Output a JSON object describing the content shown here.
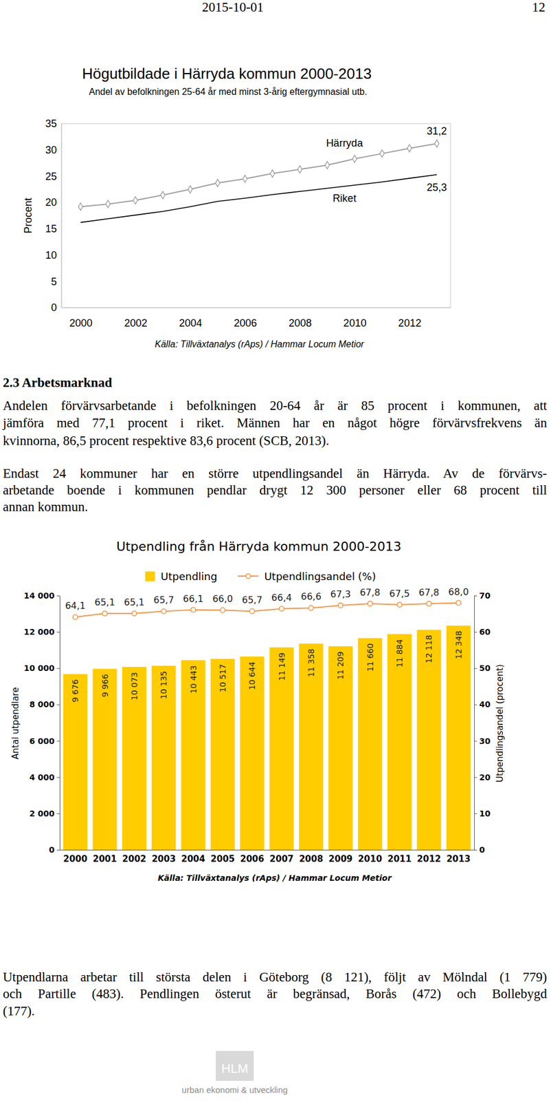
{
  "page": {
    "date": "2015-10-01",
    "page_number": "12"
  },
  "chart_data": [
    {
      "type": "line",
      "title": "Högutbildade i Härryda kommun 2000-2013",
      "subtitle": "Andel av befolkningen 25-64 år med minst 3-årig eftergymnasial utb.",
      "y_label": "Procent",
      "source": "Källa: Tillväxtanalys (rAps) / Hammar Locum Metior",
      "x": [
        2000,
        2001,
        2002,
        2003,
        2004,
        2005,
        2006,
        2007,
        2008,
        2009,
        2010,
        2011,
        2012,
        2013
      ],
      "series": [
        {
          "name": "Härryda",
          "color": "#a0a0a0",
          "marker": "diamond",
          "values": [
            19.2,
            19.7,
            20.4,
            21.4,
            22.5,
            23.7,
            24.5,
            25.5,
            26.3,
            27.1,
            28.3,
            29.3,
            30.3,
            31.2
          ],
          "value_labels": [
            null,
            null,
            null,
            null,
            null,
            null,
            null,
            null,
            null,
            null,
            null,
            null,
            null,
            "31,2"
          ]
        },
        {
          "name": "Riket",
          "color": "#000000",
          "marker": "none",
          "values": [
            16.2,
            16.9,
            17.6,
            18.3,
            19.2,
            20.2,
            20.8,
            21.5,
            22.1,
            22.7,
            23.3,
            23.9,
            24.6,
            25.3
          ],
          "value_labels": [
            null,
            null,
            null,
            null,
            null,
            null,
            null,
            null,
            null,
            null,
            null,
            null,
            null,
            "25,3"
          ]
        }
      ],
      "xlim": [
        1999.3,
        2013.5
      ],
      "xticks": [
        2000,
        2002,
        2004,
        2006,
        2008,
        2010,
        2012
      ],
      "ylim": [
        0,
        35
      ],
      "yticks": [
        0,
        5,
        10,
        15,
        20,
        25,
        30,
        35
      ],
      "grid": false
    },
    {
      "type": "bar",
      "title": "Utpendling från Härryda kommun 2000-2013",
      "y_label": "Antal utpendlare",
      "y2_label": "Utpendlingsandel (procent)",
      "source": "Källa: Tillväxtanalys (rAps) / Hammar Locum Metior",
      "categories": [
        "2000",
        "2001",
        "2002",
        "2003",
        "2004",
        "2005",
        "2006",
        "2007",
        "2008",
        "2009",
        "2010",
        "2011",
        "2012",
        "2013"
      ],
      "series": [
        {
          "name": "Utpendling",
          "type": "bar",
          "color": "#ffcc00",
          "values": [
            9676,
            9966,
            10073,
            10135,
            10443,
            10517,
            10644,
            11149,
            11358,
            11209,
            11660,
            11884,
            12118,
            12348
          ],
          "value_labels": [
            "9 676",
            "9 966",
            "10 073",
            "10 135",
            "10 443",
            "10 517",
            "10 644",
            "11 149",
            "11 358",
            "11 209",
            "11 660",
            "11 884",
            "12 118",
            "12 348"
          ]
        },
        {
          "name": "Utpendlingsandel (%)",
          "type": "line",
          "color": "#f79646",
          "marker": "circle",
          "axis": "y2",
          "values": [
            64.1,
            65.1,
            65.1,
            65.7,
            66.1,
            66.0,
            65.7,
            66.4,
            66.6,
            67.3,
            67.8,
            67.5,
            67.8,
            68.0
          ],
          "value_labels": [
            "64,1",
            "65,1",
            "65,1",
            "65,7",
            "66,1",
            "66,0",
            "65,7",
            "66,4",
            "66,6",
            "67,3",
            "67,8",
            "67,5",
            "67,8",
            "68,0"
          ]
        }
      ],
      "ylim": [
        0,
        14000
      ],
      "yticks": [
        0,
        {
          "value": 2000,
          "label": "2 000"
        },
        {
          "value": 4000,
          "label": "4 000"
        },
        {
          "value": 6000,
          "label": "6 000"
        },
        {
          "value": 8000,
          "label": "8 000"
        },
        {
          "value": 10000,
          "label": "10 000"
        },
        {
          "value": 12000,
          "label": "12 000"
        },
        {
          "value": 14000,
          "label": "14 000"
        }
      ],
      "y2lim": [
        0,
        70
      ],
      "y2ticks": [
        0,
        10,
        20,
        30,
        40,
        50,
        60,
        70
      ],
      "data_labels": true,
      "legend": "top",
      "grid": false
    }
  ],
  "sections": [
    {
      "heading": "2.3 Arbetsmarknad",
      "paragraphs": [
        {
          "lines": [
            "Andelen förvärvsarbetande i befolkningen 20-64 år är 85 procent i kommunen, att",
            "jämföra med 77,1 procent i riket. Männen har en något högre förvärvsfrekvens än",
            "kvinnorna, 86,5 procent respektive 83,6 procent (SCB, 2013)."
          ]
        },
        {
          "lines": [
            "Endast 24 kommuner har en större utpendlingsandel än Härryda. Av de förvärvs-",
            "arbetande boende i kommunen pendlar drygt 12 300 personer eller 68 procent till",
            "annan kommun."
          ]
        }
      ]
    }
  ],
  "closing_paragraph": {
    "lines": [
      "Utpendlarna arbetar till största delen i Göteborg (8 121), följt av Mölndal (1 779)",
      "och Partille (483). Pendlingen österut är begränsad, Borås (472) och Bollebygd",
      "(177)."
    ]
  },
  "footer": {
    "logo": "HLM",
    "tagline": "urban ekonomi & utveckling"
  }
}
